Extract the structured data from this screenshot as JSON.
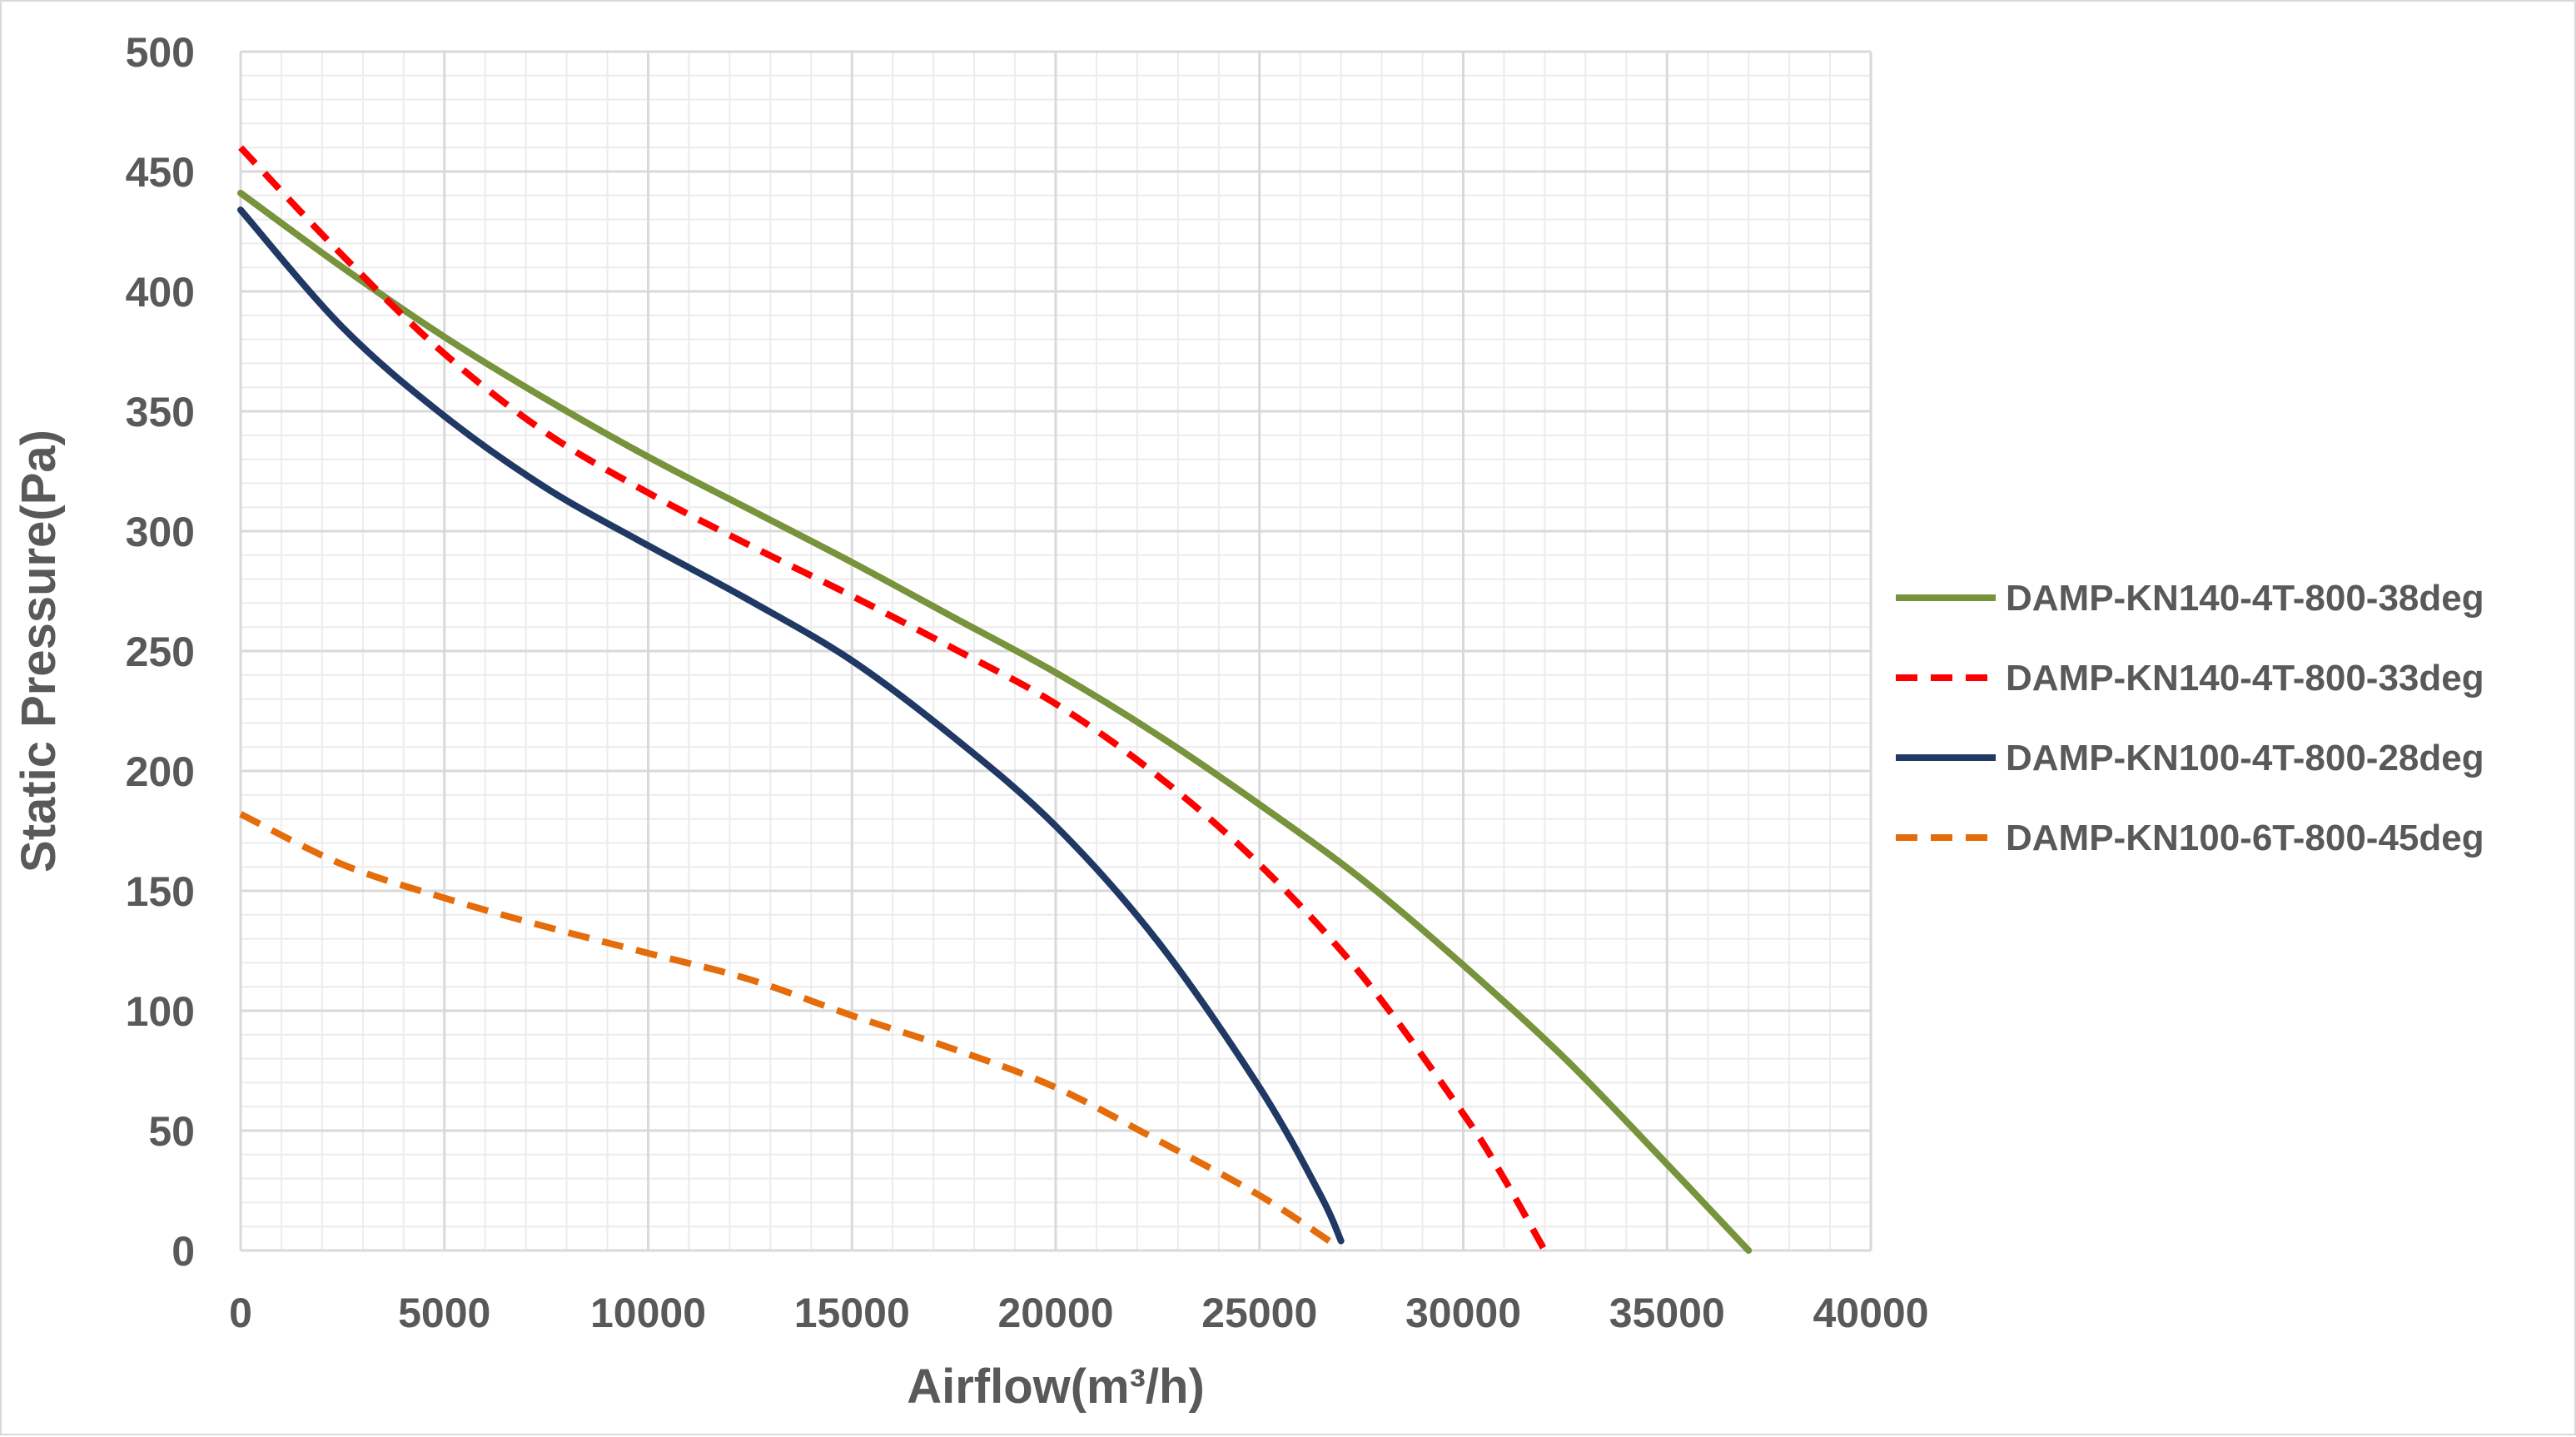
{
  "chart_data": {
    "type": "line",
    "title": "",
    "xlabel": "Airflow(m³/h)",
    "ylabel": "Static Pressure(Pa)",
    "xlim": [
      0,
      40000
    ],
    "ylim": [
      0,
      500
    ],
    "x_ticks": [
      "0",
      "5000",
      "10000",
      "15000",
      "20000",
      "25000",
      "30000",
      "35000",
      "40000"
    ],
    "y_ticks": [
      "0",
      "50",
      "100",
      "150",
      "200",
      "250",
      "300",
      "350",
      "400",
      "450",
      "500"
    ],
    "grid": true,
    "minor_grid": true,
    "legend_position": "right",
    "series": [
      {
        "name": "DAMP-KN140-4T-800-38deg",
        "color": "#77933c",
        "dash": "solid",
        "points": [
          [
            0,
            441
          ],
          [
            2500,
            410
          ],
          [
            5000,
            381
          ],
          [
            7500,
            355
          ],
          [
            10000,
            331
          ],
          [
            12500,
            309
          ],
          [
            15000,
            287
          ],
          [
            17500,
            264
          ],
          [
            20000,
            241
          ],
          [
            22500,
            215
          ],
          [
            25000,
            186
          ],
          [
            27500,
            155
          ],
          [
            30000,
            119
          ],
          [
            32500,
            80
          ],
          [
            35000,
            36
          ],
          [
            37000,
            0
          ]
        ]
      },
      {
        "name": "DAMP-KN140-4T-800-33deg",
        "color": "#ff0000",
        "dash": "dashed",
        "points": [
          [
            0,
            460
          ],
          [
            2500,
            415
          ],
          [
            5000,
            374
          ],
          [
            7500,
            341
          ],
          [
            10000,
            316
          ],
          [
            12500,
            294
          ],
          [
            15000,
            273
          ],
          [
            17500,
            251
          ],
          [
            20000,
            228
          ],
          [
            22500,
            198
          ],
          [
            25000,
            161
          ],
          [
            27500,
            115
          ],
          [
            30000,
            57
          ],
          [
            31000,
            30
          ],
          [
            32000,
            0
          ]
        ]
      },
      {
        "name": "DAMP-KN100-4T-800-28deg",
        "color": "#1f3864",
        "dash": "solid",
        "points": [
          [
            0,
            434
          ],
          [
            2500,
            385
          ],
          [
            5000,
            348
          ],
          [
            7500,
            318
          ],
          [
            10000,
            294
          ],
          [
            12500,
            271
          ],
          [
            15000,
            246
          ],
          [
            17500,
            214
          ],
          [
            20000,
            177
          ],
          [
            22500,
            129
          ],
          [
            25000,
            68
          ],
          [
            26500,
            23
          ],
          [
            27000,
            4
          ]
        ]
      },
      {
        "name": "DAMP-KN100-6T-800-45deg",
        "color": "#e46c0a",
        "dash": "dashed",
        "points": [
          [
            0,
            182
          ],
          [
            2500,
            161
          ],
          [
            5000,
            147
          ],
          [
            7500,
            135
          ],
          [
            10000,
            124
          ],
          [
            12500,
            113
          ],
          [
            15000,
            98
          ],
          [
            17500,
            84
          ],
          [
            20000,
            68
          ],
          [
            22500,
            46
          ],
          [
            25000,
            23
          ],
          [
            26800,
            3
          ]
        ]
      }
    ]
  }
}
